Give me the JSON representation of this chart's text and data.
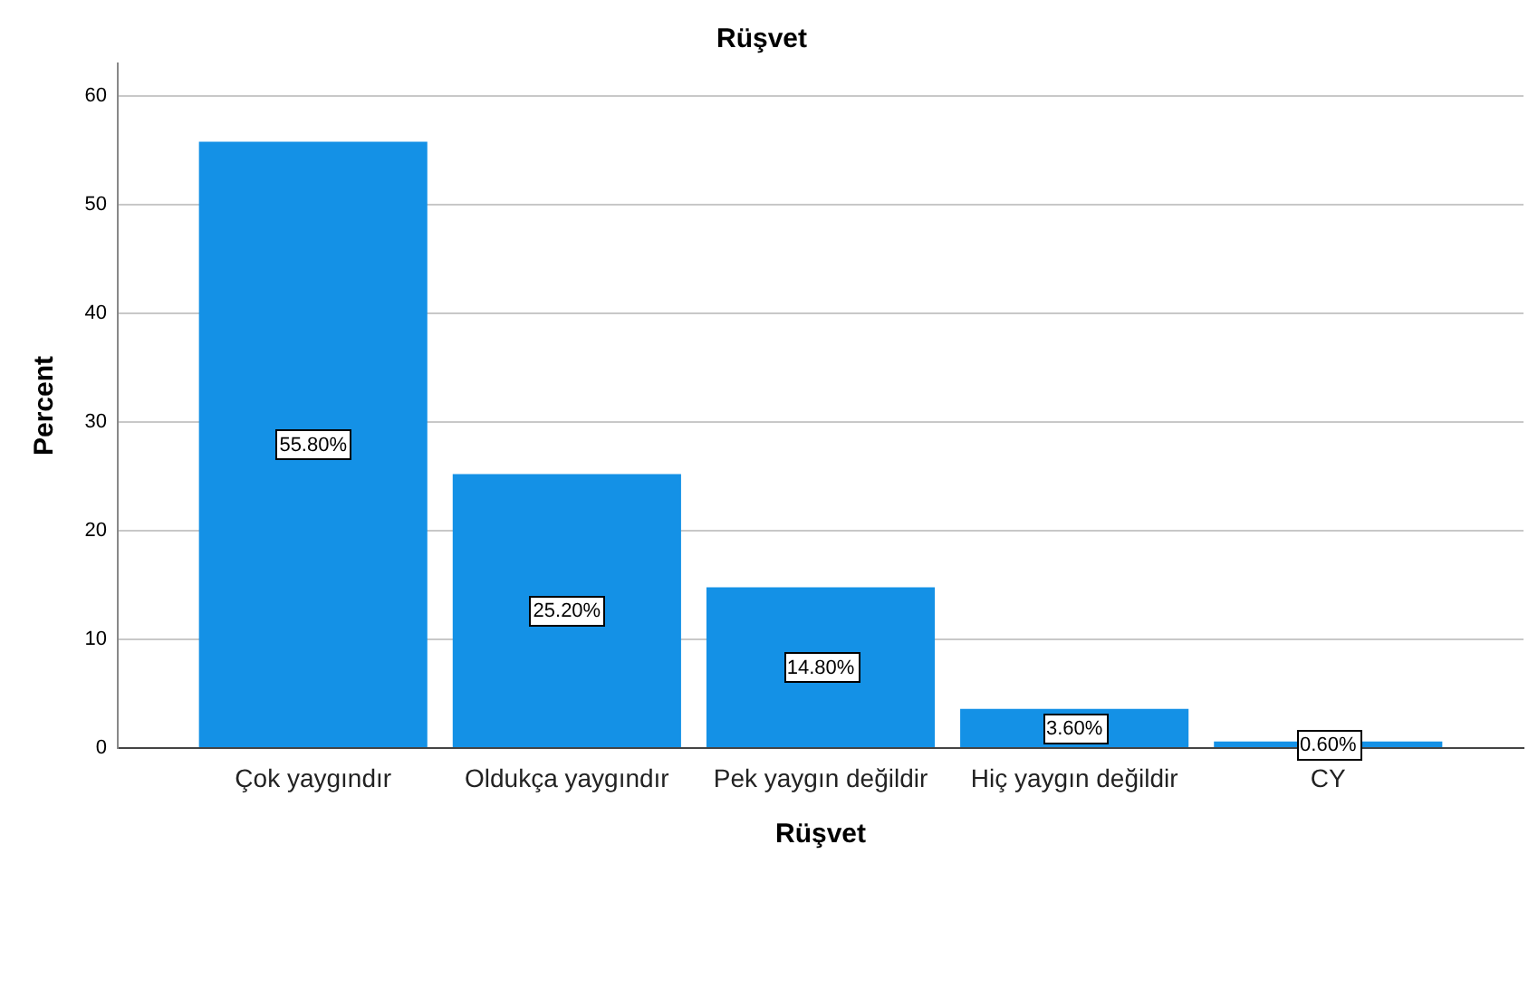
{
  "chart_data": {
    "type": "bar",
    "title": "Rüşvet",
    "xlabel": "Rüşvet",
    "ylabel": "Percent",
    "categories": [
      "Çok yaygındır",
      "Oldukça yaygındır",
      "Pek yaygın değildir",
      "Hiç yaygın değildir",
      "CY"
    ],
    "values": [
      55.8,
      25.2,
      14.8,
      3.6,
      0.6
    ],
    "value_labels": [
      "55.80%",
      "25.20%",
      "14.80%",
      "3.60%",
      "0.60%"
    ],
    "color": "#1491e6",
    "ylim": [
      0,
      63
    ],
    "yticks": [
      0,
      10,
      20,
      30,
      40,
      50,
      60
    ],
    "grid": "y"
  }
}
